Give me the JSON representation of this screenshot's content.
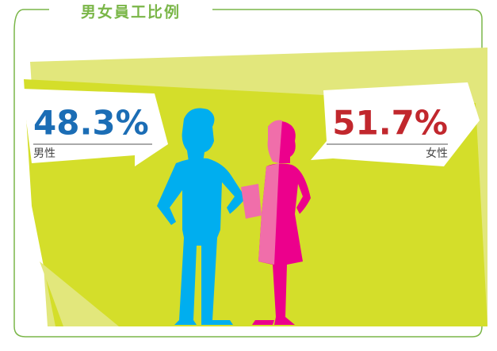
{
  "title": "男女員工比例",
  "items": [
    {
      "value": "48.3%",
      "label": "男性"
    },
    {
      "value": "51.7%",
      "label": "女性"
    }
  ]
}
